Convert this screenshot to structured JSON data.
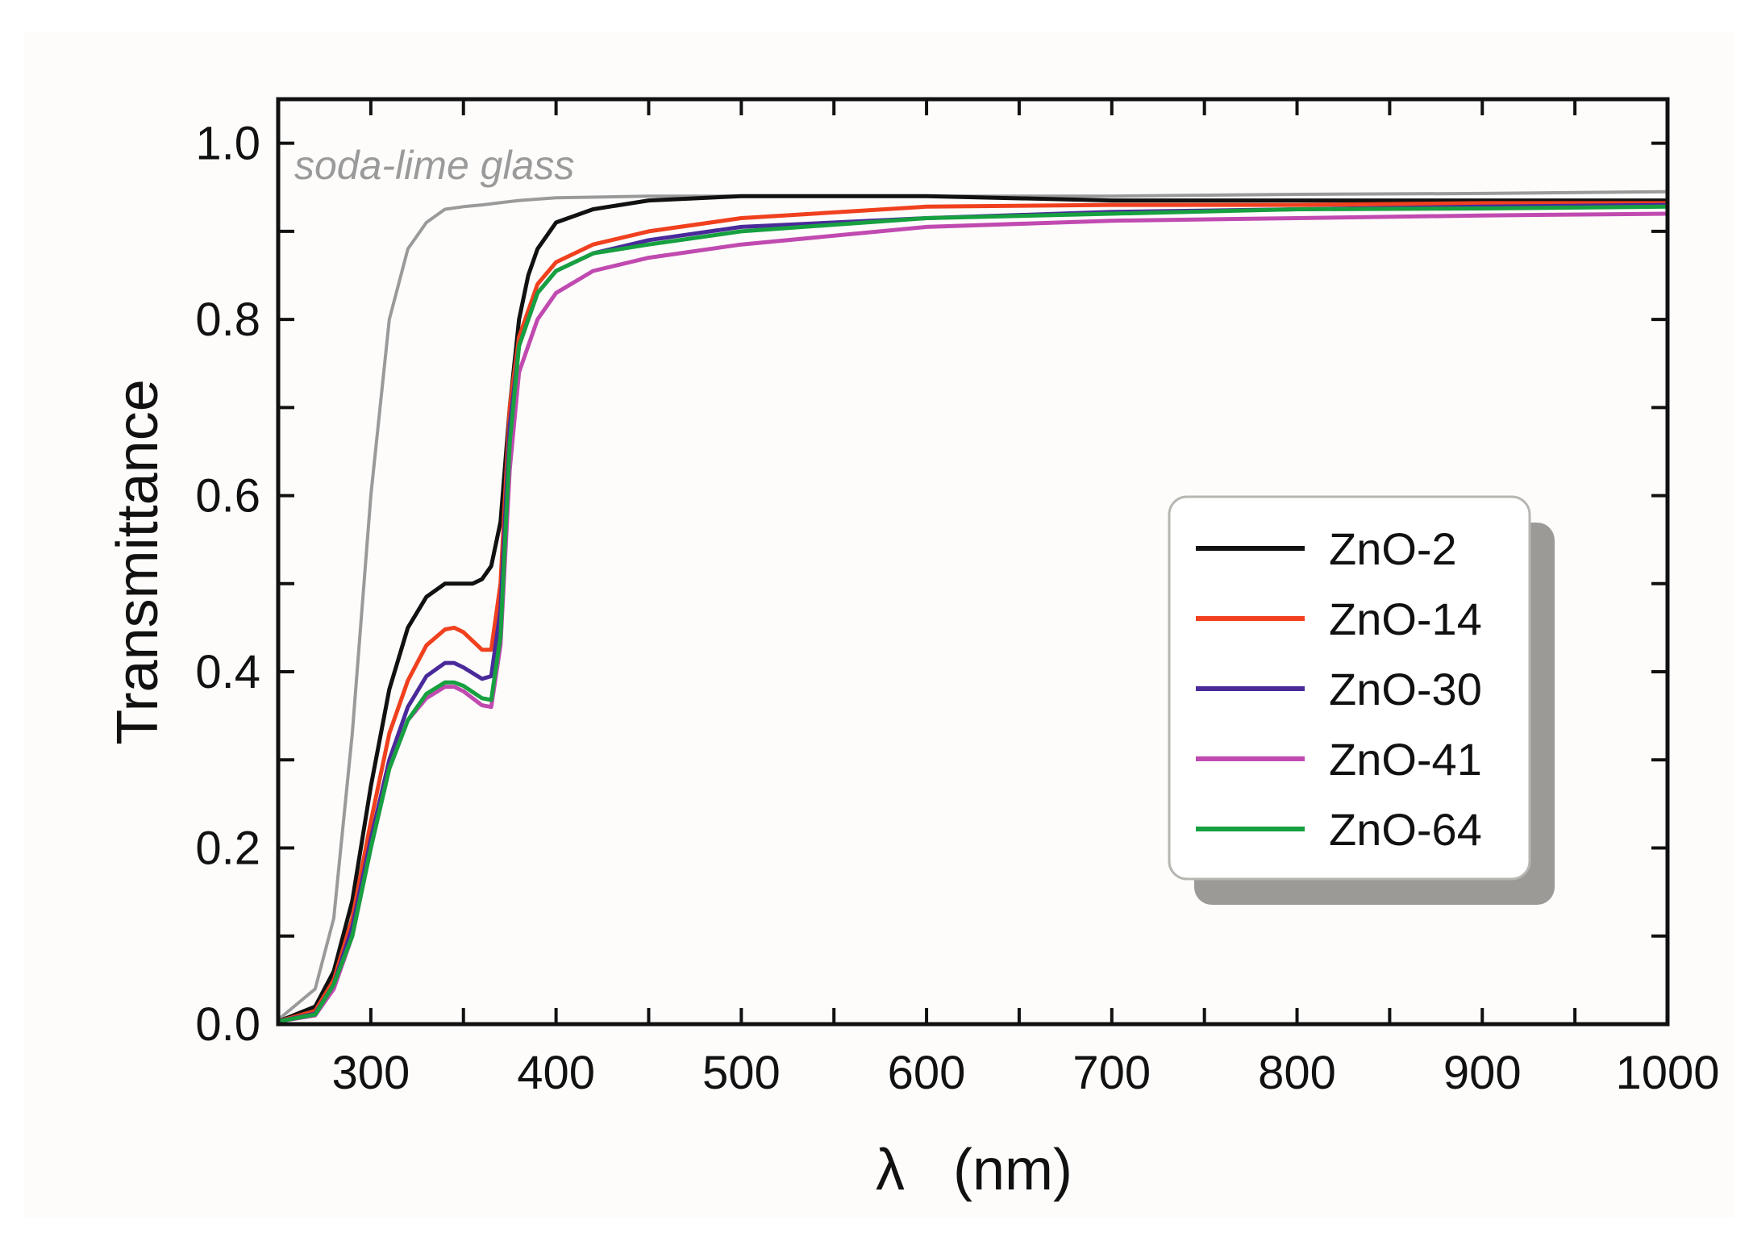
{
  "chart_data": {
    "type": "line",
    "title": "",
    "xlabel": "λ   (nm)",
    "ylabel": "Transmittance",
    "xlim": [
      250,
      1000
    ],
    "ylim": [
      0.0,
      1.05
    ],
    "xticks": [
      300,
      400,
      500,
      600,
      700,
      800,
      900,
      1000
    ],
    "xtick_labels": [
      "300",
      "400",
      "500",
      "600",
      "700",
      "800",
      "900",
      "1000"
    ],
    "yticks": [
      0.0,
      0.2,
      0.4,
      0.6,
      0.8,
      1.0
    ],
    "ytick_labels": [
      "0.0",
      "0.2",
      "0.4",
      "0.6",
      "0.8",
      "1.0"
    ],
    "grid": false,
    "legend_position": "center-right",
    "annotation": {
      "text": "soda-lime glass",
      "color": "#9a9a9a"
    },
    "series": [
      {
        "name": "soda-lime glass",
        "color": "#9a9a9a",
        "in_legend": false,
        "x": [
          250,
          270,
          280,
          290,
          300,
          310,
          320,
          330,
          340,
          350,
          360,
          380,
          400,
          450,
          500,
          600,
          700,
          800,
          900,
          1000
        ],
        "y": [
          0.005,
          0.04,
          0.12,
          0.33,
          0.6,
          0.8,
          0.88,
          0.91,
          0.925,
          0.928,
          0.93,
          0.935,
          0.938,
          0.94,
          0.94,
          0.94,
          0.94,
          0.942,
          0.943,
          0.945
        ]
      },
      {
        "name": "ZnO-2",
        "color": "#111111",
        "in_legend": true,
        "x": [
          250,
          270,
          280,
          290,
          300,
          310,
          320,
          330,
          340,
          350,
          355,
          360,
          365,
          370,
          375,
          380,
          385,
          390,
          400,
          420,
          450,
          500,
          600,
          700,
          800,
          900,
          1000
        ],
        "y": [
          0.003,
          0.02,
          0.06,
          0.14,
          0.27,
          0.38,
          0.45,
          0.485,
          0.5,
          0.5,
          0.5,
          0.505,
          0.52,
          0.57,
          0.7,
          0.8,
          0.85,
          0.88,
          0.91,
          0.925,
          0.935,
          0.94,
          0.94,
          0.935,
          0.935,
          0.935,
          0.935
        ]
      },
      {
        "name": "ZnO-14",
        "color": "#f0401e",
        "in_legend": true,
        "x": [
          250,
          270,
          280,
          290,
          300,
          310,
          320,
          330,
          340,
          345,
          350,
          360,
          365,
          370,
          375,
          380,
          390,
          400,
          420,
          450,
          500,
          600,
          700,
          800,
          900,
          1000
        ],
        "y": [
          0.003,
          0.015,
          0.05,
          0.12,
          0.23,
          0.33,
          0.39,
          0.43,
          0.448,
          0.45,
          0.445,
          0.425,
          0.425,
          0.5,
          0.7,
          0.78,
          0.84,
          0.865,
          0.885,
          0.9,
          0.915,
          0.928,
          0.93,
          0.93,
          0.932,
          0.932
        ]
      },
      {
        "name": "ZnO-30",
        "color": "#4a2a9a",
        "in_legend": true,
        "x": [
          250,
          270,
          280,
          290,
          300,
          310,
          320,
          330,
          340,
          345,
          350,
          360,
          365,
          370,
          375,
          380,
          390,
          400,
          420,
          450,
          500,
          600,
          700,
          800,
          900,
          1000
        ],
        "y": [
          0.003,
          0.012,
          0.045,
          0.11,
          0.21,
          0.3,
          0.36,
          0.395,
          0.41,
          0.41,
          0.405,
          0.392,
          0.395,
          0.47,
          0.68,
          0.77,
          0.83,
          0.855,
          0.875,
          0.89,
          0.905,
          0.915,
          0.922,
          0.925,
          0.928,
          0.93
        ]
      },
      {
        "name": "ZnO-41",
        "color": "#c04ab0",
        "in_legend": true,
        "x": [
          250,
          270,
          280,
          290,
          300,
          310,
          320,
          330,
          340,
          345,
          350,
          360,
          365,
          370,
          375,
          380,
          390,
          400,
          420,
          450,
          500,
          600,
          700,
          800,
          900,
          1000
        ],
        "y": [
          0.003,
          0.01,
          0.04,
          0.1,
          0.2,
          0.29,
          0.345,
          0.37,
          0.383,
          0.383,
          0.378,
          0.362,
          0.36,
          0.43,
          0.63,
          0.74,
          0.8,
          0.83,
          0.855,
          0.87,
          0.885,
          0.905,
          0.912,
          0.915,
          0.918,
          0.92
        ]
      },
      {
        "name": "ZnO-64",
        "color": "#17a040",
        "in_legend": true,
        "x": [
          250,
          270,
          280,
          290,
          300,
          310,
          320,
          330,
          340,
          345,
          350,
          360,
          365,
          370,
          375,
          380,
          390,
          400,
          420,
          450,
          500,
          600,
          700,
          800,
          900,
          1000
        ],
        "y": [
          0.003,
          0.011,
          0.045,
          0.1,
          0.2,
          0.29,
          0.345,
          0.375,
          0.388,
          0.388,
          0.384,
          0.37,
          0.368,
          0.44,
          0.66,
          0.77,
          0.83,
          0.855,
          0.875,
          0.885,
          0.9,
          0.915,
          0.92,
          0.925,
          0.926,
          0.928
        ]
      }
    ]
  }
}
